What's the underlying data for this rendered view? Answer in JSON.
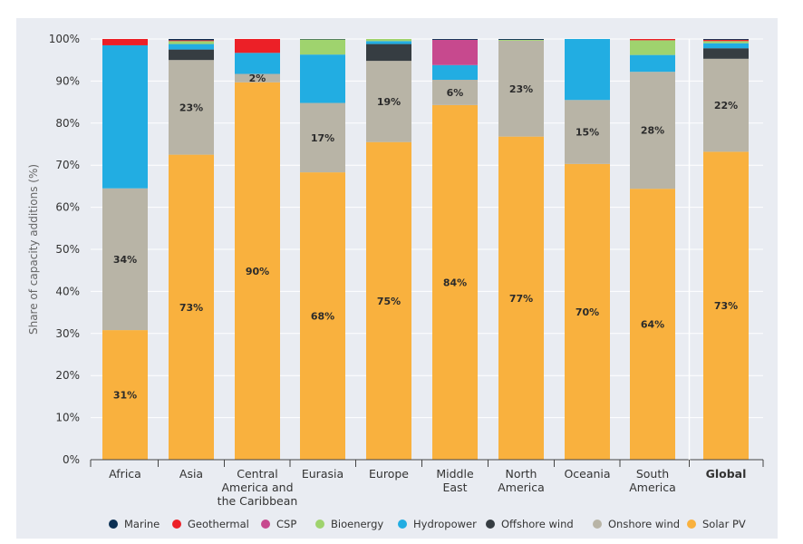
{
  "chart_data": {
    "type": "bar",
    "stacked": true,
    "ylabel": "Share of capacity additions (%)",
    "ylim": [
      0,
      100
    ],
    "yticks": [
      "0%",
      "10%",
      "20%",
      "30%",
      "40%",
      "50%",
      "60%",
      "70%",
      "80%",
      "90%",
      "100%"
    ],
    "categories": [
      [
        "Africa"
      ],
      [
        "Asia"
      ],
      [
        "Central",
        "America and",
        "the Caribbean"
      ],
      [
        "Eurasia"
      ],
      [
        "Europe"
      ],
      [
        "Middle",
        "East"
      ],
      [
        "North",
        "America"
      ],
      [
        "Oceania"
      ],
      [
        "South",
        "America"
      ],
      [
        "Global"
      ]
    ],
    "bold_category": 9,
    "grid": true,
    "legend_position": "bottom",
    "series": [
      {
        "name": "Solar PV",
        "color": "#f9b13e",
        "values": [
          30.8,
          72.5,
          89.7,
          68.3,
          75.5,
          84.3,
          76.8,
          70.3,
          64.4,
          73.2
        ],
        "labels": [
          "31%",
          "73%",
          "90%",
          "68%",
          "75%",
          "84%",
          "77%",
          "70%",
          "64%",
          "73%"
        ]
      },
      {
        "name": "Onshore wind",
        "color": "#b8b4a6",
        "values": [
          33.7,
          22.5,
          2.0,
          16.5,
          19.3,
          6.0,
          22.8,
          15.2,
          27.8,
          22.1
        ],
        "labels": [
          "34%",
          "23%",
          "2%",
          "17%",
          "19%",
          "6%",
          "23%",
          "15%",
          "28%",
          "22%"
        ]
      },
      {
        "name": "Offshore wind",
        "color": "#363d42",
        "values": [
          0,
          2.5,
          0,
          0,
          4.0,
          0,
          0,
          0,
          0,
          2.5
        ],
        "labels": [
          "",
          "",
          "",
          "",
          "",
          "",
          "",
          "",
          "",
          ""
        ]
      },
      {
        "name": "Hydropower",
        "color": "#22ade2",
        "values": [
          34.0,
          1.3,
          5.0,
          11.5,
          0.7,
          3.5,
          0,
          14.5,
          4.0,
          1.2
        ],
        "labels": [
          "",
          "",
          "",
          "",
          "",
          "",
          "",
          "",
          "",
          ""
        ]
      },
      {
        "name": "Bioenergy",
        "color": "#9fd36e",
        "values": [
          0,
          0.7,
          0,
          3.6,
          0.5,
          0,
          0.2,
          0,
          3.5,
          0.5
        ],
        "labels": [
          "",
          "",
          "",
          "",
          "",
          "",
          "",
          "",
          "",
          ""
        ]
      },
      {
        "name": "CSP",
        "color": "#c7498e",
        "values": [
          0,
          0,
          0,
          0,
          0,
          6.0,
          0,
          0,
          0,
          0
        ],
        "labels": [
          "",
          "",
          "",
          "",
          "",
          "",
          "",
          "",
          "",
          ""
        ]
      },
      {
        "name": "Geothermal",
        "color": "#ec2027",
        "values": [
          1.5,
          0.2,
          3.3,
          0,
          0,
          0,
          0,
          0,
          0.3,
          0.3
        ],
        "labels": [
          "",
          "",
          "",
          "",
          "",
          "",
          "",
          "",
          "",
          ""
        ]
      },
      {
        "name": "Marine",
        "color": "#0b2f53",
        "values": [
          0,
          0.3,
          0,
          0.1,
          0,
          0.2,
          0.2,
          0,
          0,
          0.2
        ],
        "labels": [
          "",
          "",
          "",
          "",
          "",
          "",
          "",
          "",
          "",
          ""
        ]
      }
    ],
    "legend_order": [
      "Marine",
      "Geothermal",
      "CSP",
      "Bioenergy",
      "Hydropower",
      "Offshore wind",
      "Onshore wind",
      "Solar PV"
    ]
  }
}
